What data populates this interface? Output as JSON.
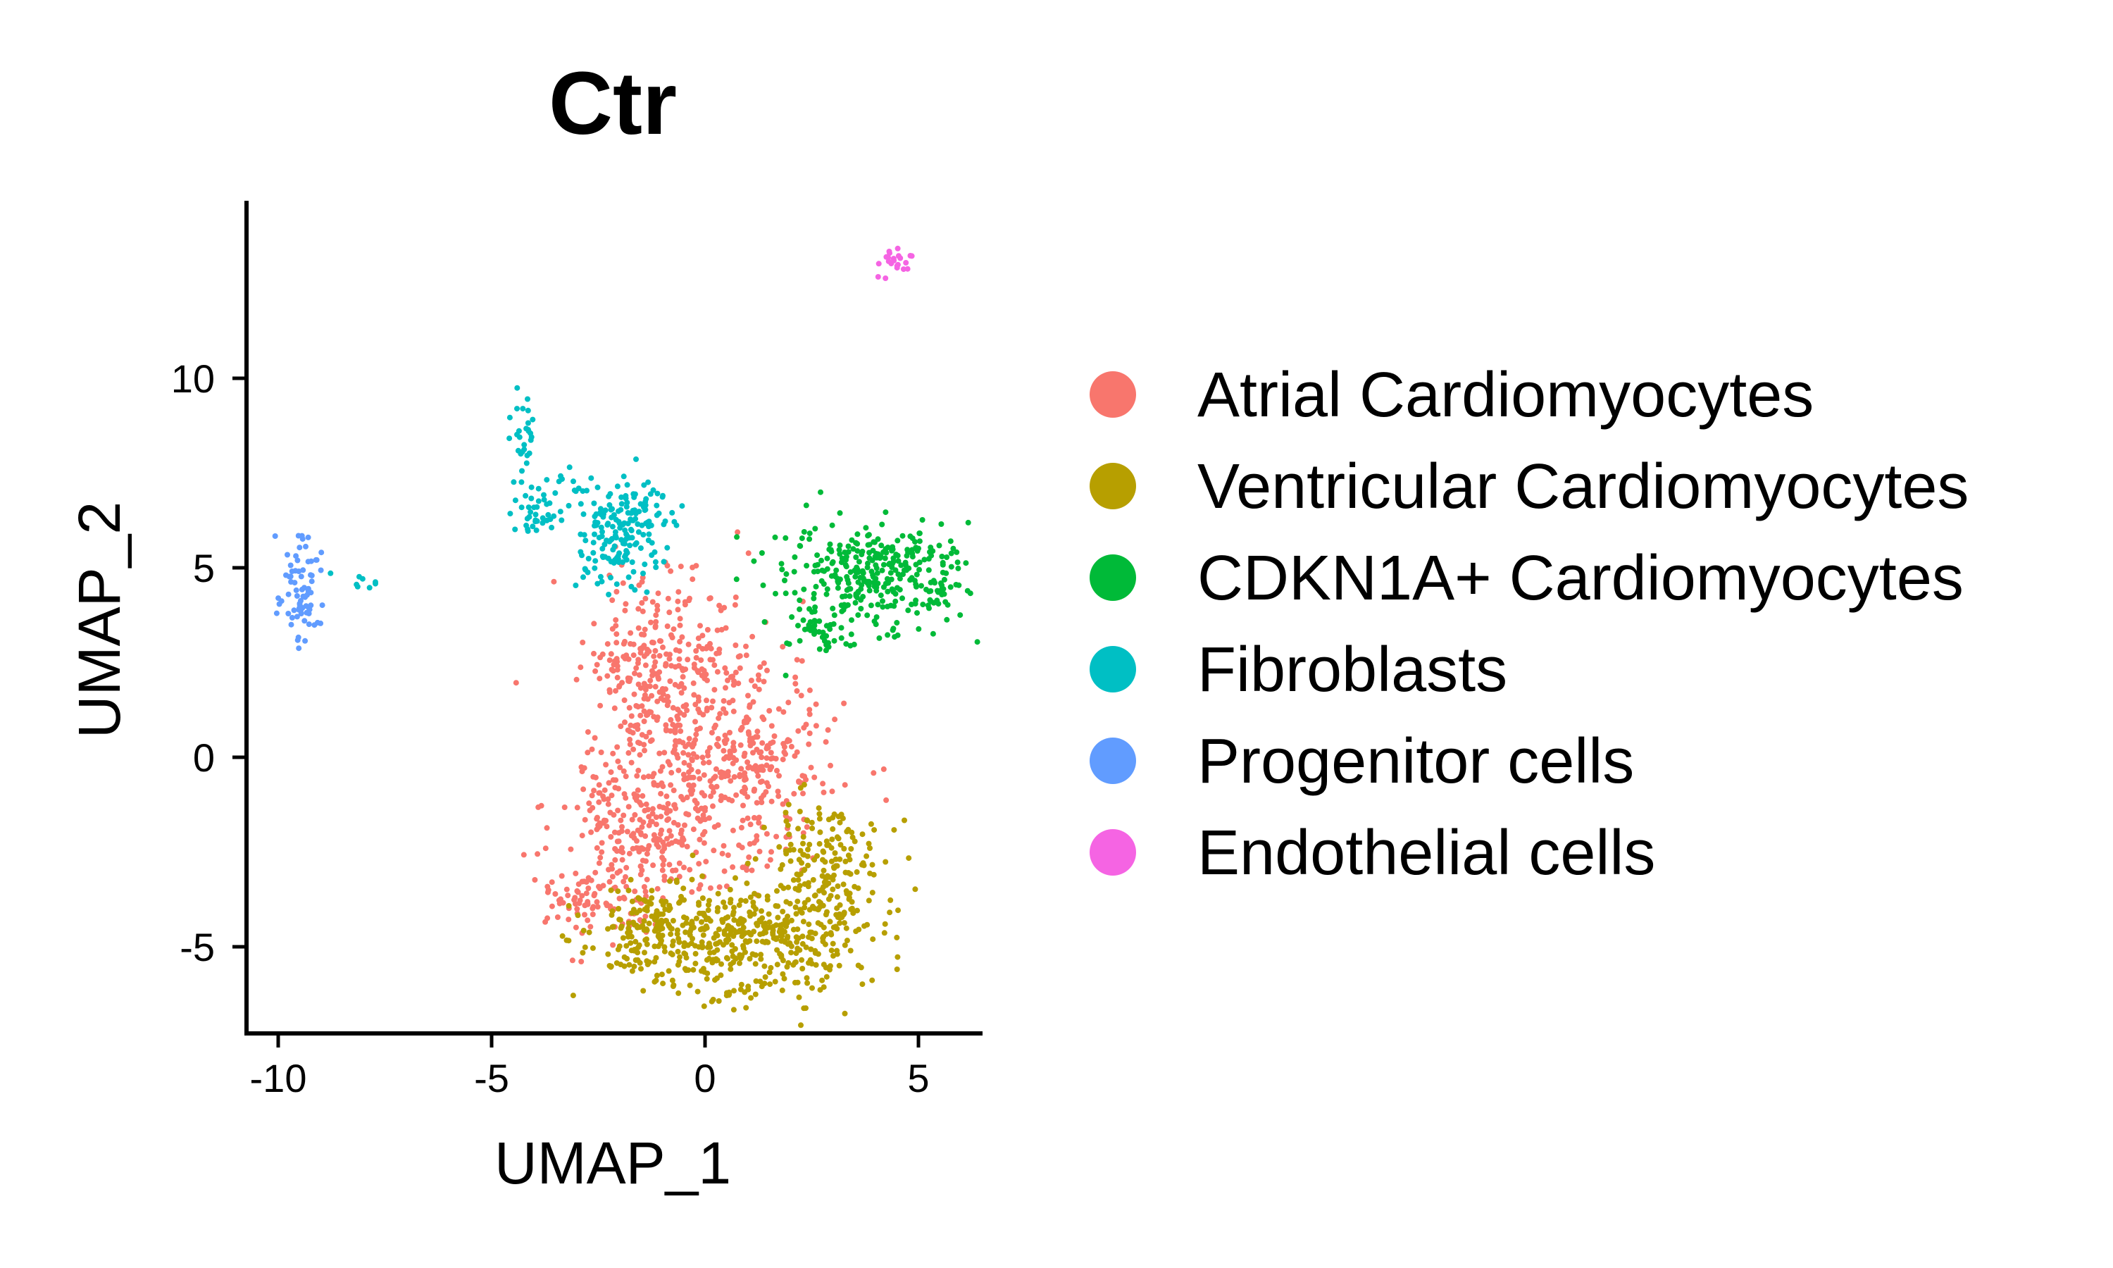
{
  "chart_data": {
    "type": "scatter",
    "title": "Ctr",
    "xlabel": "UMAP_1",
    "ylabel": "UMAP_2",
    "xlim": [
      -10.7,
      6.5
    ],
    "ylim": [
      -7.3,
      14.6
    ],
    "xticks": [
      -10,
      -5,
      0,
      5
    ],
    "yticks": [
      -5,
      0,
      5,
      10
    ],
    "grid": false,
    "legend": "right",
    "colors": {
      "Atrial Cardiomyocytes": "#F8766D",
      "Ventricular Cardiomyocytes": "#B79F00",
      "CDKN1A+ Cardiomyocytes": "#00BA38",
      "Fibroblasts": "#00BFC4",
      "Progenitor cells": "#619CFF",
      "Endothelial cells": "#F564E3"
    },
    "series": [
      {
        "name": "Atrial Cardiomyocytes",
        "clusters": [
          {
            "cx": -0.9,
            "cy": 2.5,
            "sx": 0.9,
            "sy": 1.3,
            "n": 260
          },
          {
            "cx": 0.3,
            "cy": 0.2,
            "sx": 1.3,
            "sy": 1.4,
            "n": 340
          },
          {
            "cx": -1.3,
            "cy": -1.8,
            "sx": 1.1,
            "sy": 1.1,
            "n": 260
          },
          {
            "cx": -2.7,
            "cy": -3.8,
            "sx": 0.55,
            "sy": 0.55,
            "n": 80
          },
          {
            "cx": 1.6,
            "cy": -1.0,
            "sx": 0.5,
            "sy": 1.0,
            "n": 60
          }
        ]
      },
      {
        "name": "Ventricular Cardiomyocytes",
        "clusters": [
          {
            "cx": 0.9,
            "cy": -4.8,
            "sx": 1.5,
            "sy": 0.75,
            "n": 460
          },
          {
            "cx": 2.9,
            "cy": -2.9,
            "sx": 0.75,
            "sy": 0.9,
            "n": 180
          },
          {
            "cx": -1.4,
            "cy": -4.6,
            "sx": 0.7,
            "sy": 0.6,
            "n": 100
          }
        ]
      },
      {
        "name": "CDKN1A+ Cardiomyocytes",
        "clusters": [
          {
            "cx": 4.0,
            "cy": 4.8,
            "sx": 1.1,
            "sy": 0.7,
            "n": 340
          },
          {
            "cx": 2.6,
            "cy": 3.4,
            "sx": 0.45,
            "sy": 0.4,
            "n": 40
          }
        ]
      },
      {
        "name": "Fibroblasts",
        "clusters": [
          {
            "cx": -2.0,
            "cy": 5.8,
            "sx": 0.5,
            "sy": 0.7,
            "n": 150
          },
          {
            "cx": -4.0,
            "cy": 6.3,
            "sx": 0.35,
            "sy": 0.2,
            "n": 30
          },
          {
            "cx": -4.2,
            "cy": 8.3,
            "sx": 0.15,
            "sy": 0.6,
            "n": 30
          },
          {
            "cx": -1.3,
            "cy": 6.5,
            "sx": 0.35,
            "sy": 0.4,
            "n": 30
          },
          {
            "cx": -3.3,
            "cy": 7.2,
            "sx": 0.5,
            "sy": 0.3,
            "n": 20
          },
          {
            "cx": -8.1,
            "cy": 4.6,
            "sx": 0.3,
            "sy": 0.15,
            "n": 8
          }
        ]
      },
      {
        "name": "Progenitor cells",
        "clusters": [
          {
            "cx": -9.4,
            "cy": 4.3,
            "sx": 0.25,
            "sy": 0.75,
            "n": 75
          }
        ]
      },
      {
        "name": "Endothelial cells",
        "clusters": [
          {
            "cx": 4.5,
            "cy": 13.1,
            "sx": 0.18,
            "sy": 0.18,
            "n": 22
          }
        ]
      }
    ]
  }
}
